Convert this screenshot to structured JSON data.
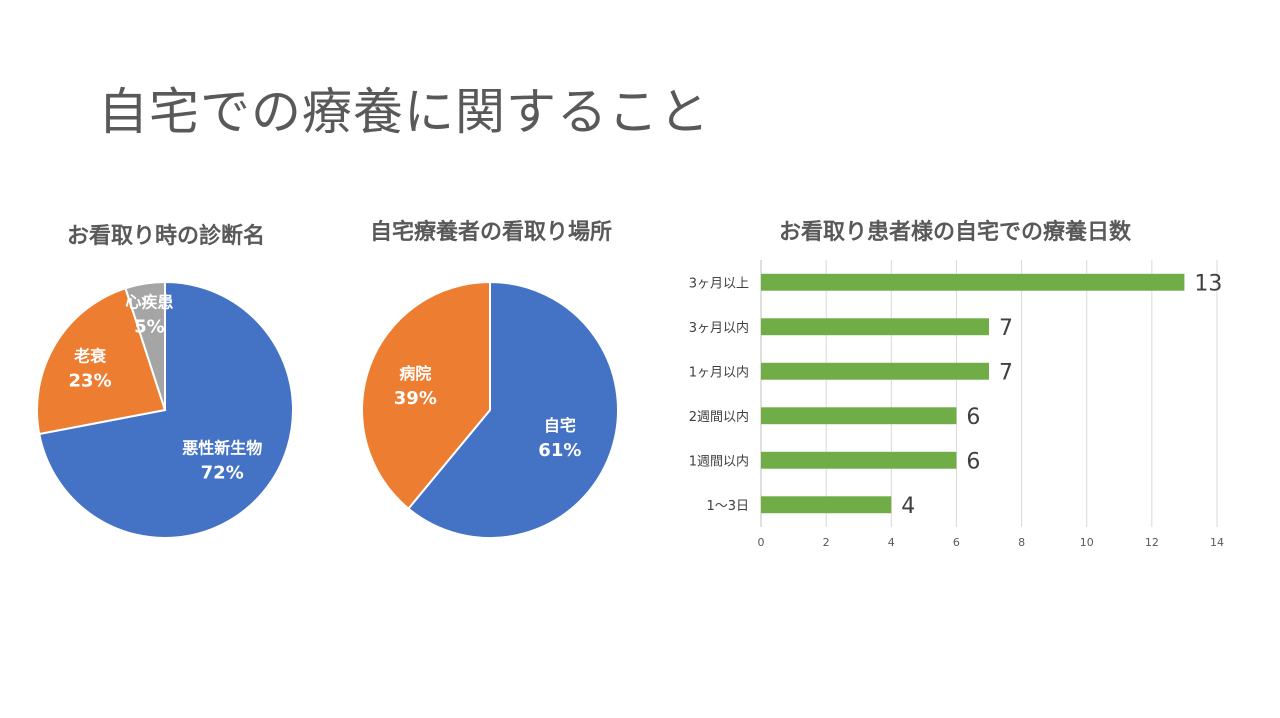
{
  "page": {
    "title": "自宅での療養に関すること"
  },
  "chart_data": [
    {
      "type": "pie",
      "title": "お看取り時の診断名",
      "start_angle_deg": 0,
      "slices": [
        {
          "label": "悪性新生物",
          "value": 72,
          "value_label": "72%",
          "color": "#4472C4"
        },
        {
          "label": "老衰",
          "value": 23,
          "value_label": "23%",
          "color": "#ED7D31"
        },
        {
          "label": "心疾患",
          "value": 5,
          "value_label": "5%",
          "color": "#A5A5A5"
        }
      ]
    },
    {
      "type": "pie",
      "title": "自宅療養者の看取り場所",
      "start_angle_deg": 0,
      "slices": [
        {
          "label": "自宅",
          "value": 61,
          "value_label": "61%",
          "color": "#4472C4"
        },
        {
          "label": "病院",
          "value": 39,
          "value_label": "39%",
          "color": "#ED7D31"
        }
      ]
    },
    {
      "type": "bar",
      "orientation": "horizontal",
      "title": "お看取り患者様の自宅での療養日数",
      "categories": [
        "3ヶ月以上",
        "3ヶ月以内",
        "1ヶ月以内",
        "2週間以内",
        "1週間以内",
        "1～3日"
      ],
      "values": [
        13,
        7,
        7,
        6,
        6,
        4
      ],
      "xlim": [
        0,
        14
      ],
      "xticks": [
        0,
        2,
        4,
        6,
        8,
        10,
        12,
        14
      ],
      "grid": true,
      "bar_color": "#70AD47",
      "data_labels": true
    }
  ]
}
